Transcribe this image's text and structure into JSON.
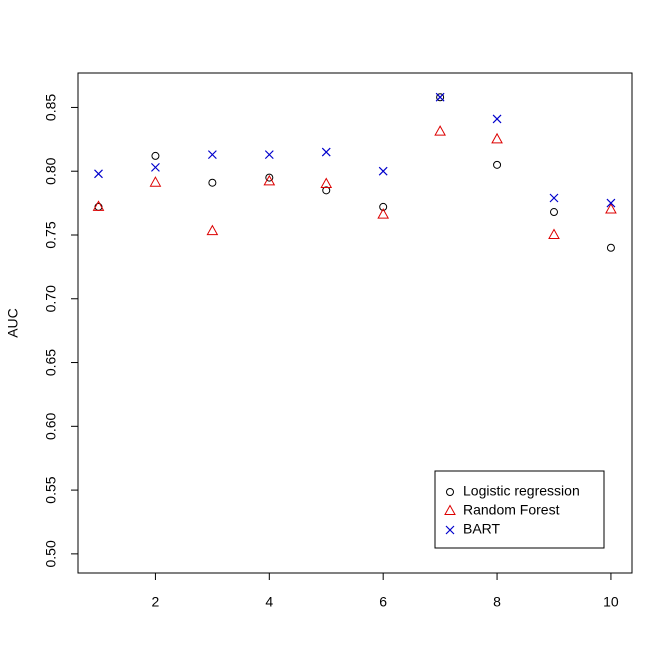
{
  "chart_data": {
    "type": "scatter",
    "ylabel": "AUC",
    "x": [
      1,
      2,
      3,
      4,
      5,
      6,
      7,
      8,
      9,
      10
    ],
    "series": [
      {
        "name": "Logistic regression",
        "color": "#000000",
        "marker": "circle",
        "values": [
          0.772,
          0.812,
          0.791,
          0.795,
          0.785,
          0.772,
          0.858,
          0.805,
          0.768,
          0.74
        ]
      },
      {
        "name": "Random Forest",
        "color": "#dd0000",
        "marker": "triangle",
        "values": [
          0.772,
          0.791,
          0.753,
          0.792,
          0.79,
          0.766,
          0.831,
          0.825,
          0.75,
          0.77
        ]
      },
      {
        "name": "BART",
        "color": "#0000cc",
        "marker": "x",
        "values": [
          0.798,
          0.803,
          0.813,
          0.813,
          0.815,
          0.8,
          0.858,
          0.841,
          0.779,
          0.775
        ]
      }
    ],
    "xlim": [
      0.64,
      10.37
    ],
    "xticks": [
      2,
      4,
      6,
      8,
      10
    ],
    "ylim": [
      0.485,
      0.877
    ],
    "yticks": [
      {
        "value": 0.5,
        "label": "0.50"
      },
      {
        "value": 0.55,
        "label": "0.55"
      },
      {
        "value": 0.6,
        "label": "0.60"
      },
      {
        "value": 0.65,
        "label": "0.65"
      },
      {
        "value": 0.7,
        "label": "0.70"
      },
      {
        "value": 0.75,
        "label": "0.75"
      },
      {
        "value": 0.8,
        "label": "0.80"
      },
      {
        "value": 0.85,
        "label": "0.85"
      }
    ],
    "legend": "bottomright"
  }
}
